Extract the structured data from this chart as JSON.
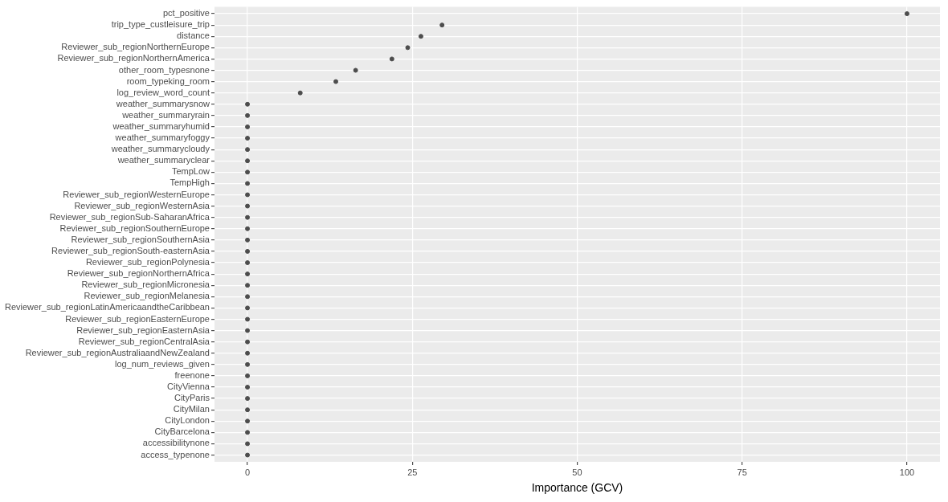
{
  "chart_data": {
    "type": "scatter",
    "orientation": "horizontal",
    "xlabel": "Importance (GCV)",
    "categories": [
      "pct_positive",
      "trip_type_custleisure_trip",
      "distance",
      "Reviewer_sub_regionNorthernEurope",
      "Reviewer_sub_regionNorthernAmerica",
      "other_room_typesnone",
      "room_typeking_room",
      "log_review_word_count",
      "weather_summarysnow",
      "weather_summaryrain",
      "weather_summaryhumid",
      "weather_summaryfoggy",
      "weather_summarycloudy",
      "weather_summaryclear",
      "TempLow",
      "TempHigh",
      "Reviewer_sub_regionWesternEurope",
      "Reviewer_sub_regionWesternAsia",
      "Reviewer_sub_regionSub-SaharanAfrica",
      "Reviewer_sub_regionSouthernEurope",
      "Reviewer_sub_regionSouthernAsia",
      "Reviewer_sub_regionSouth-easternAsia",
      "Reviewer_sub_regionPolynesia",
      "Reviewer_sub_regionNorthernAfrica",
      "Reviewer_sub_regionMicronesia",
      "Reviewer_sub_regionMelanesia",
      "Reviewer_sub_regionLatinAmericaandtheCaribbean",
      "Reviewer_sub_regionEasternEurope",
      "Reviewer_sub_regionEasternAsia",
      "Reviewer_sub_regionCentralAsia",
      "Reviewer_sub_regionAustraliaandNewZealand",
      "log_num_reviews_given",
      "freenone",
      "CityVienna",
      "CityParis",
      "CityMilan",
      "CityLondon",
      "CityBarcelona",
      "accessibilitynone",
      "access_typenone"
    ],
    "values": [
      100,
      29.5,
      26.3,
      24.3,
      21.9,
      16.4,
      13.4,
      8.0,
      0,
      0,
      0,
      0,
      0,
      0,
      0,
      0,
      0,
      0,
      0,
      0,
      0,
      0,
      0,
      0,
      0,
      0,
      0,
      0,
      0,
      0,
      0,
      0,
      0,
      0,
      0,
      0,
      0,
      0,
      0,
      0
    ],
    "color": "#4d4d4d",
    "marker": "circle",
    "xlim": [
      -5,
      105
    ],
    "xticks": [
      0,
      25,
      50,
      75,
      100
    ],
    "grid": true,
    "legend": false
  }
}
